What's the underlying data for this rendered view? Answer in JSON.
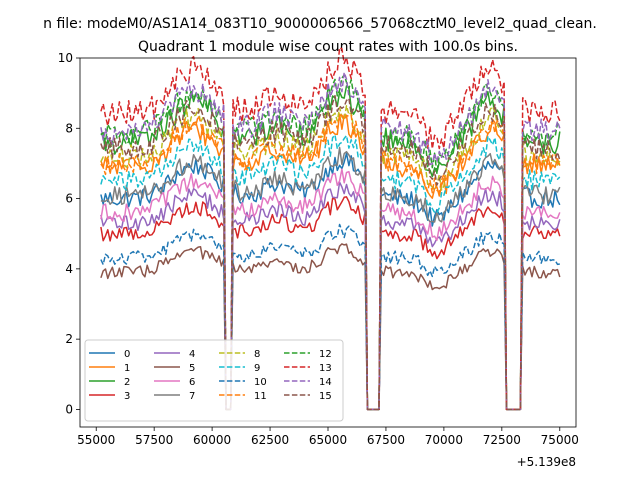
{
  "chart_data": {
    "type": "line",
    "suptitle": "n file: modeM0/AS1A14_083T10_9000006566_57068cztM0_level2_quad_clean.",
    "title": "Quadrant 1 module wise count rates with 100.0s bins.",
    "xlabel": "",
    "ylabel": "",
    "x_offset_label": "+5.139e8",
    "xlim": [
      54300,
      75700
    ],
    "ylim": [
      -0.5,
      10.0
    ],
    "x_ticks": [
      55000,
      57500,
      60000,
      62500,
      65000,
      67500,
      70000,
      72500,
      75000
    ],
    "x_tick_labels": [
      "55000",
      "57500",
      "60000",
      "62500",
      "65000",
      "67500",
      "70000",
      "72500",
      "75000"
    ],
    "y_ticks": [
      0,
      2,
      4,
      6,
      8,
      10
    ],
    "y_tick_labels": [
      "0",
      "2",
      "4",
      "6",
      "8",
      "10"
    ],
    "grid": false,
    "legend_position": "lower-left",
    "legend_columns": 4,
    "x_range": [
      55200,
      75000
    ],
    "bin_seconds": 100,
    "gaps": [
      [
        60580,
        60820
      ],
      [
        66700,
        67250
      ],
      [
        72620,
        73300
      ]
    ],
    "gap_floor": 0.0,
    "series": [
      {
        "name": "0",
        "color": "#1f77b4",
        "dash": "solid",
        "level": 6.0
      },
      {
        "name": "1",
        "color": "#ff7f0e",
        "dash": "solid",
        "level": 6.9
      },
      {
        "name": "2",
        "color": "#2ca02c",
        "dash": "solid",
        "level": 7.6
      },
      {
        "name": "3",
        "color": "#d62728",
        "dash": "solid",
        "level": 5.0
      },
      {
        "name": "4",
        "color": "#9467bd",
        "dash": "solid",
        "level": 5.3
      },
      {
        "name": "5",
        "color": "#8c564b",
        "dash": "solid",
        "level": 3.9
      },
      {
        "name": "6",
        "color": "#e377c2",
        "dash": "solid",
        "level": 5.6
      },
      {
        "name": "7",
        "color": "#7f7f7f",
        "dash": "solid",
        "level": 6.1
      },
      {
        "name": "8",
        "color": "#bcbd22",
        "dash": "dashed",
        "level": 7.2
      },
      {
        "name": "9",
        "color": "#17becf",
        "dash": "dashed",
        "level": 6.5
      },
      {
        "name": "10",
        "color": "#1f77b4",
        "dash": "dashed",
        "level": 4.3
      },
      {
        "name": "11",
        "color": "#ff7f0e",
        "dash": "dashed",
        "level": 7.0
      },
      {
        "name": "12",
        "color": "#2ca02c",
        "dash": "dashed",
        "level": 7.8
      },
      {
        "name": "13",
        "color": "#d62728",
        "dash": "dashed",
        "level": 8.4
      },
      {
        "name": "14",
        "color": "#9467bd",
        "dash": "dashed",
        "level": 7.9
      },
      {
        "name": "15",
        "color": "#8c564b",
        "dash": "dashed",
        "level": 7.4
      }
    ]
  }
}
